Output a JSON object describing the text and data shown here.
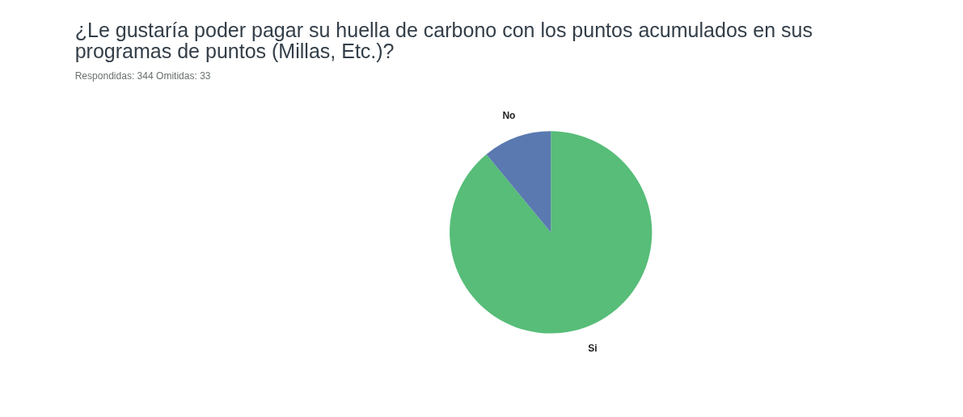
{
  "chart_data": {
    "type": "pie",
    "title": "¿Le gustaría poder pagar su huella de carbono con los puntos acumulados en sus programas de puntos (Millas, Etc.)?",
    "subtitle": "Respondidas: 344    Omitidas: 33",
    "categories": [
      "Si",
      "No"
    ],
    "values": [
      89,
      11
    ],
    "colors": [
      "#57bd78",
      "#5a79b0"
    ],
    "legend": false
  }
}
